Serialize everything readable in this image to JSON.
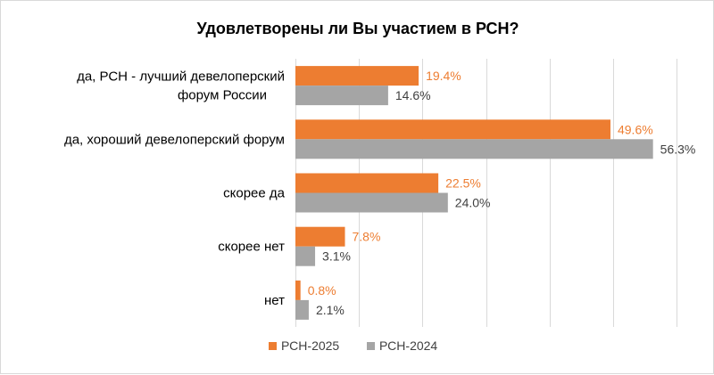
{
  "chart_data": {
    "type": "bar",
    "orientation": "horizontal",
    "title": "Удовлетворены ли Вы участием в РСН?",
    "categories": [
      [
        "да, РСН - лучший девелоперский",
        "форум России"
      ],
      [
        "да, хороший девелоперский форум"
      ],
      [
        "скорее  да"
      ],
      [
        "скорее  нет"
      ],
      [
        "нет"
      ]
    ],
    "series": [
      {
        "name": "РСН-2025",
        "color": "#ed7d31",
        "label_color": "#ed7d31",
        "values": [
          19.4,
          49.6,
          22.5,
          7.8,
          0.8
        ],
        "labels": [
          "19.4%",
          "49.6%",
          "22.5%",
          "7.8%",
          "0.8%"
        ]
      },
      {
        "name": "РСН-2024",
        "color": "#a5a5a5",
        "label_color": "#404040",
        "values": [
          14.6,
          56.3,
          24.0,
          3.1,
          2.1
        ],
        "labels": [
          "14.6%",
          "56.3%",
          "24.0%",
          "3.1%",
          "2.1%"
        ]
      }
    ],
    "xlim": [
      0,
      60
    ],
    "grid": true,
    "legend_position": "bottom"
  }
}
